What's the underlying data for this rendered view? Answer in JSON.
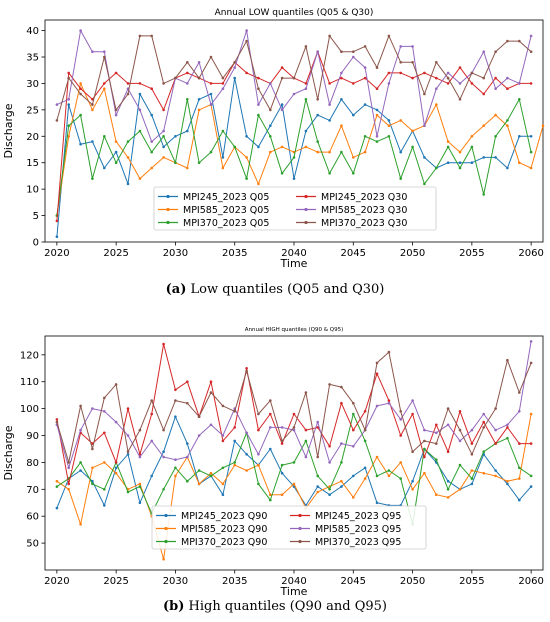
{
  "captions": {
    "a_label": "(a)",
    "a_text": "Low quantiles (Q05 and Q30)",
    "b_label": "(b)",
    "b_text": "High quantiles (Q90 and Q95)"
  },
  "chart_data": [
    {
      "type": "line",
      "title": "Annual LOW quantiles (Q05 & Q30)",
      "xlabel": "Time",
      "ylabel": "Discharge",
      "xlim": [
        2019,
        2061
      ],
      "ylim": [
        0,
        42
      ],
      "xticks": [
        2020,
        2025,
        2030,
        2035,
        2040,
        2045,
        2050,
        2055,
        2060
      ],
      "yticks": [
        0,
        5,
        10,
        15,
        20,
        25,
        30,
        35,
        40
      ],
      "grid": false,
      "legend": "bottom-center",
      "legend_columns": 2,
      "x_start": 2020,
      "series": [
        {
          "name": "MPI245_2023 Q05",
          "color": "#1f77b4",
          "values": [
            1,
            26,
            18.5,
            19,
            14,
            17,
            11,
            28,
            24,
            18,
            20,
            21,
            27,
            28,
            16,
            31,
            20,
            18,
            22,
            26,
            12,
            21,
            24,
            23,
            27,
            24,
            26,
            25,
            23,
            17,
            21,
            16,
            14,
            15,
            15,
            15,
            16,
            16,
            14,
            20,
            20
          ]
        },
        {
          "name": "MPI585_2023 Q05",
          "color": "#ff7f0e",
          "values": [
            5,
            20,
            30,
            25,
            29,
            19,
            16,
            12,
            14,
            16,
            15,
            14,
            25,
            26,
            14,
            18,
            16,
            11,
            17,
            18,
            17,
            18,
            17,
            17,
            22,
            16,
            17,
            24,
            22,
            23,
            21,
            22,
            26,
            19,
            17,
            20,
            22,
            24,
            22,
            15,
            14,
            22
          ]
        },
        {
          "name": "MPI370_2023 Q05",
          "color": "#2ca02c",
          "values": [
            5,
            22,
            24,
            12,
            20,
            15,
            19,
            21,
            17,
            20,
            15,
            27,
            15,
            17,
            21,
            18,
            12,
            24,
            20,
            13,
            16,
            27,
            19,
            13,
            17,
            13,
            20,
            19,
            20,
            12,
            18,
            11,
            14,
            18,
            14,
            18,
            9,
            20,
            23,
            27,
            17
          ]
        },
        {
          "name": "MPI245_2023 Q30",
          "color": "#d62728",
          "values": [
            4,
            32,
            29,
            27,
            30,
            32,
            30,
            30,
            29,
            25,
            31,
            32,
            31,
            30,
            30,
            34,
            32,
            31,
            30,
            33,
            31,
            30,
            36,
            30,
            31,
            30,
            31,
            29,
            32,
            32,
            31,
            32,
            31,
            30,
            33,
            30,
            28,
            31,
            29,
            30,
            30
          ]
        },
        {
          "name": "MPI585_2023 Q30",
          "color": "#9467bd",
          "values": [
            26,
            27,
            40,
            36,
            36,
            24,
            29,
            25,
            19,
            21,
            31,
            30,
            34,
            26,
            29,
            33,
            40,
            26,
            30,
            25,
            28,
            29,
            36,
            26,
            32,
            35,
            33,
            20,
            30,
            37,
            37,
            22,
            29,
            32,
            30,
            32,
            36,
            29,
            31,
            30,
            39
          ]
        },
        {
          "name": "MPI370_2023 Q30",
          "color": "#8c564b",
          "values": [
            23,
            31,
            28,
            26,
            35,
            25,
            28,
            39,
            39,
            30,
            31,
            34,
            31,
            35,
            31,
            34,
            38,
            29,
            25,
            31,
            31,
            37,
            27,
            39,
            36,
            36,
            37,
            33,
            39,
            34,
            34,
            28,
            34,
            31,
            27,
            32,
            31,
            36,
            38,
            38,
            36
          ]
        }
      ]
    },
    {
      "type": "line",
      "title": "Annual HIGH quantiles (Q90 & Q95)",
      "xlabel": "Time",
      "ylabel": "Discharge",
      "xlim": [
        2019,
        2061
      ],
      "ylim": [
        40,
        127
      ],
      "xticks": [
        2020,
        2025,
        2030,
        2035,
        2040,
        2045,
        2050,
        2055,
        2060
      ],
      "yticks": [
        50,
        60,
        70,
        80,
        90,
        100,
        110,
        120
      ],
      "grid": false,
      "legend": "bottom-center",
      "legend_columns": 2,
      "x_start": 2020,
      "series": [
        {
          "name": "MPI245_2023 Q90",
          "color": "#1f77b4",
          "values": [
            63,
            74,
            77,
            73,
            64,
            78,
            83,
            65,
            75,
            84,
            97,
            87,
            72,
            75,
            68,
            88,
            83,
            79,
            85,
            76,
            71,
            64,
            71,
            68,
            71,
            75,
            78,
            65,
            64,
            64,
            73,
            85,
            80,
            73,
            70,
            72,
            83,
            77,
            72,
            66,
            71
          ]
        },
        {
          "name": "MPI585_2023 Q90",
          "color": "#ff7f0e",
          "values": [
            73,
            70,
            57,
            78,
            80,
            76,
            70,
            72,
            60,
            44,
            75,
            82,
            72,
            76,
            72,
            79,
            77,
            79,
            68,
            68,
            72,
            63,
            69,
            71,
            73,
            67,
            74,
            82,
            75,
            80,
            70,
            76,
            68,
            67,
            70,
            77,
            76,
            75,
            73,
            74,
            98
          ]
        },
        {
          "name": "MPI370_2023 Q90",
          "color": "#2ca02c",
          "values": [
            71,
            74,
            80,
            72,
            70,
            80,
            69,
            71,
            61,
            70,
            78,
            73,
            77,
            75,
            78,
            80,
            91,
            72,
            66,
            79,
            80,
            88,
            75,
            70,
            80,
            98,
            88,
            75,
            77,
            74,
            57,
            85,
            81,
            70,
            79,
            74,
            84,
            87,
            89,
            78,
            75
          ]
        },
        {
          "name": "MPI245_2023 Q95",
          "color": "#d62728",
          "values": [
            96,
            72,
            91,
            87,
            91,
            80,
            100,
            83,
            98,
            124,
            107,
            110,
            97,
            110,
            88,
            93,
            115,
            92,
            98,
            87,
            98,
            92,
            93,
            86,
            102,
            92,
            99,
            113,
            103,
            90,
            98,
            82,
            94,
            84,
            99,
            87,
            95,
            87,
            93,
            87,
            87
          ]
        },
        {
          "name": "MPI585_2023 Q95",
          "color": "#9467bd",
          "values": [
            94,
            78,
            92,
            100,
            99,
            95,
            90,
            82,
            88,
            82,
            81,
            82,
            90,
            94,
            90,
            100,
            91,
            83,
            93,
            93,
            92,
            82,
            95,
            80,
            87,
            86,
            92,
            101,
            102,
            96,
            103,
            92,
            91,
            94,
            88,
            92,
            98,
            92,
            94,
            99,
            125
          ]
        },
        {
          "name": "MPI370_2023 Q95",
          "color": "#8c564b",
          "values": [
            95,
            80,
            101,
            85,
            104,
            109,
            84,
            92,
            103,
            92,
            103,
            102,
            97,
            106,
            101,
            99,
            114,
            98,
            103,
            88,
            93,
            106,
            82,
            109,
            108,
            102,
            92,
            117,
            121,
            99,
            84,
            88,
            87,
            100,
            92,
            83,
            93,
            100,
            118,
            106,
            117
          ]
        }
      ]
    }
  ]
}
